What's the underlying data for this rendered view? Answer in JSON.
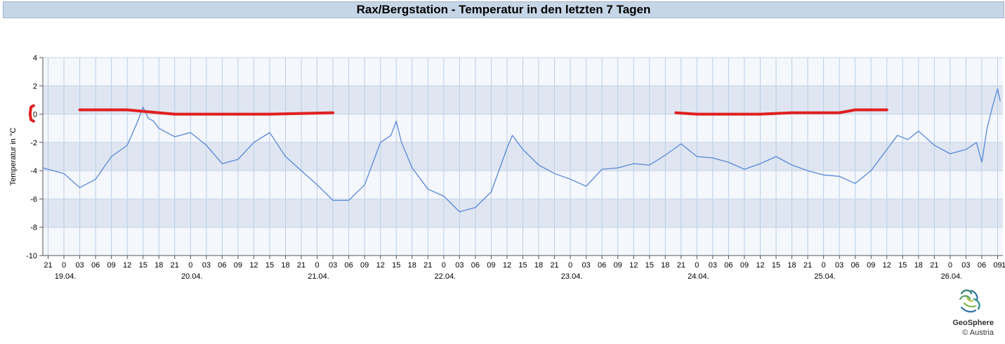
{
  "chart_data": {
    "type": "line",
    "title": "Rax/Bergstation - Temperatur in den letzten 7 Tagen",
    "ylabel": "Temperatur in °C",
    "xlabel": "",
    "ylim": [
      -10,
      4
    ],
    "yticks": [
      4,
      2,
      0,
      -2,
      -4,
      -6,
      -8,
      -10
    ],
    "grid": true,
    "x_start": "2024-04-18 20:00",
    "x_end": "2024-04-26 10:00",
    "hour_tick_step_hours": 3,
    "date_labels": [
      {
        "label": "19.04.",
        "at": "2024-04-19 00:00"
      },
      {
        "label": "20.04.",
        "at": "2024-04-20 00:00"
      },
      {
        "label": "21.04.",
        "at": "2024-04-21 00:00"
      },
      {
        "label": "22.04.",
        "at": "2024-04-22 00:00"
      },
      {
        "label": "23.04.",
        "at": "2024-04-23 00:00"
      },
      {
        "label": "24.04.",
        "at": "2024-04-24 00:00"
      },
      {
        "label": "25.04.",
        "at": "2024-04-25 00:00"
      },
      {
        "label": "26.04.",
        "at": "2024-04-26 00:00"
      }
    ],
    "series": [
      {
        "color": "#5a86d8",
        "points": [
          [
            "2024-04-18 20:00",
            -3.8
          ],
          [
            "2024-04-19 00:00",
            -4.2
          ],
          [
            "2024-04-19 03:00",
            -5.2
          ],
          [
            "2024-04-19 06:00",
            -4.6
          ],
          [
            "2024-04-19 09:00",
            -3.0
          ],
          [
            "2024-04-19 12:00",
            -2.2
          ],
          [
            "2024-04-19 14:00",
            -0.5
          ],
          [
            "2024-04-19 15:00",
            0.5
          ],
          [
            "2024-04-19 16:00",
            -0.3
          ],
          [
            "2024-04-19 17:00",
            -0.5
          ],
          [
            "2024-04-19 18:00",
            -1.0
          ],
          [
            "2024-04-19 21:00",
            -1.6
          ],
          [
            "2024-04-20 00:00",
            -1.3
          ],
          [
            "2024-04-20 03:00",
            -2.2
          ],
          [
            "2024-04-20 06:00",
            -3.5
          ],
          [
            "2024-04-20 09:00",
            -3.2
          ],
          [
            "2024-04-20 12:00",
            -2.0
          ],
          [
            "2024-04-20 15:00",
            -1.3
          ],
          [
            "2024-04-20 18:00",
            -3.0
          ],
          [
            "2024-04-20 21:00",
            -4.0
          ],
          [
            "2024-04-21 00:00",
            -5.0
          ],
          [
            "2024-04-21 03:00",
            -6.1
          ],
          [
            "2024-04-21 06:00",
            -6.1
          ],
          [
            "2024-04-21 09:00",
            -5.0
          ],
          [
            "2024-04-21 12:00",
            -2.0
          ],
          [
            "2024-04-21 14:00",
            -1.5
          ],
          [
            "2024-04-21 15:00",
            -0.5
          ],
          [
            "2024-04-21 16:00",
            -2.0
          ],
          [
            "2024-04-21 18:00",
            -3.8
          ],
          [
            "2024-04-21 21:00",
            -5.3
          ],
          [
            "2024-04-22 00:00",
            -5.8
          ],
          [
            "2024-04-22 03:00",
            -6.9
          ],
          [
            "2024-04-22 06:00",
            -6.6
          ],
          [
            "2024-04-22 09:00",
            -5.5
          ],
          [
            "2024-04-22 12:00",
            -2.4
          ],
          [
            "2024-04-22 13:00",
            -1.5
          ],
          [
            "2024-04-22 15:00",
            -2.5
          ],
          [
            "2024-04-22 18:00",
            -3.6
          ],
          [
            "2024-04-22 21:00",
            -4.2
          ],
          [
            "2024-04-23 00:00",
            -4.6
          ],
          [
            "2024-04-23 03:00",
            -5.1
          ],
          [
            "2024-04-23 06:00",
            -3.9
          ],
          [
            "2024-04-23 09:00",
            -3.8
          ],
          [
            "2024-04-23 12:00",
            -3.5
          ],
          [
            "2024-04-23 15:00",
            -3.6
          ],
          [
            "2024-04-23 18:00",
            -2.9
          ],
          [
            "2024-04-23 21:00",
            -2.1
          ],
          [
            "2024-04-24 00:00",
            -3.0
          ],
          [
            "2024-04-24 03:00",
            -3.1
          ],
          [
            "2024-04-24 06:00",
            -3.4
          ],
          [
            "2024-04-24 09:00",
            -3.9
          ],
          [
            "2024-04-24 12:00",
            -3.5
          ],
          [
            "2024-04-24 15:00",
            -3.0
          ],
          [
            "2024-04-24 18:00",
            -3.6
          ],
          [
            "2024-04-24 21:00",
            -4.0
          ],
          [
            "2024-04-25 00:00",
            -4.3
          ],
          [
            "2024-04-25 03:00",
            -4.4
          ],
          [
            "2024-04-25 06:00",
            -4.9
          ],
          [
            "2024-04-25 09:00",
            -4.0
          ],
          [
            "2024-04-25 12:00",
            -2.5
          ],
          [
            "2024-04-25 14:00",
            -1.5
          ],
          [
            "2024-04-25 16:00",
            -1.8
          ],
          [
            "2024-04-25 18:00",
            -1.2
          ],
          [
            "2024-04-25 21:00",
            -2.2
          ],
          [
            "2024-04-26 00:00",
            -2.8
          ],
          [
            "2024-04-26 03:00",
            -2.5
          ],
          [
            "2024-04-26 05:00",
            -2.0
          ],
          [
            "2024-04-26 06:00",
            -3.4
          ],
          [
            "2024-04-26 07:00",
            -1.0
          ],
          [
            "2024-04-26 08:00",
            0.5
          ],
          [
            "2024-04-26 09:00",
            1.8
          ],
          [
            "2024-04-26 09:30",
            0.9
          ]
        ]
      }
    ],
    "annotations": [
      {
        "kind": "bracket",
        "color": "#e02020",
        "points": [
          [
            "2024-04-18 18:15",
            0.6
          ],
          [
            "2024-04-18 17:45",
            0.5
          ],
          [
            "2024-04-18 17:35",
            0.0
          ],
          [
            "2024-04-18 17:45",
            -0.4
          ],
          [
            "2024-04-18 18:15",
            -0.5
          ]
        ]
      },
      {
        "kind": "stroke",
        "color": "#e02020",
        "points": [
          [
            "2024-04-19 03:00",
            0.3
          ],
          [
            "2024-04-19 12:00",
            0.3
          ],
          [
            "2024-04-19 18:00",
            0.1
          ],
          [
            "2024-04-19 21:00",
            0.0
          ],
          [
            "2024-04-20 12:00",
            0.0
          ],
          [
            "2024-04-20 15:00",
            0.0
          ],
          [
            "2024-04-21 03:00",
            0.1
          ]
        ]
      },
      {
        "kind": "stroke",
        "color": "#e02020",
        "points": [
          [
            "2024-04-23 20:00",
            0.1
          ],
          [
            "2024-04-24 00:00",
            0.0
          ],
          [
            "2024-04-24 12:00",
            0.0
          ],
          [
            "2024-04-24 18:00",
            0.1
          ],
          [
            "2024-04-25 03:00",
            0.1
          ],
          [
            "2024-04-25 06:00",
            0.3
          ],
          [
            "2024-04-25 12:00",
            0.3
          ]
        ]
      }
    ]
  },
  "logo": {
    "brand": "GeoSphere",
    "copyright_line": "©   Austria"
  }
}
